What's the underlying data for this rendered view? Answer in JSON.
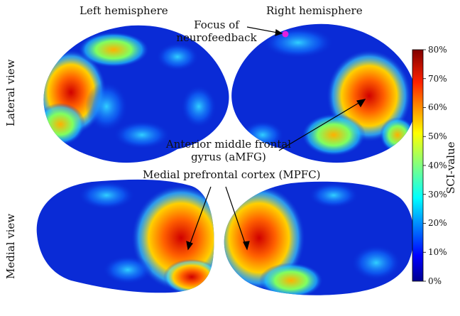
{
  "headers": {
    "left": "Left hemisphere",
    "right": "Right hemisphere"
  },
  "rows": {
    "lateral": "Lateral view",
    "medial": "Medial view"
  },
  "annotations": {
    "focus_line1": "Focus of",
    "focus_line2": "neurofeedback",
    "amfg_line1": "Anterior middle frontal",
    "amfg_line2": "gyrus (aMFG)",
    "mpfc": "Medial prefrontal cortex (MPFC)"
  },
  "colorbar": {
    "label": "SCI-value",
    "ticks": [
      "80%",
      "70%",
      "60%",
      "50%",
      "40%",
      "30%",
      "20%",
      "10%",
      "0%"
    ],
    "colormap": [
      "#00008f",
      "#0000ff",
      "#0080ff",
      "#00ffff",
      "#80ff80",
      "#ffff00",
      "#ff8000",
      "#ff0000",
      "#800000"
    ]
  },
  "colors": {
    "brain_base": "#0a2bd6",
    "focus_marker": "#e020e0"
  }
}
